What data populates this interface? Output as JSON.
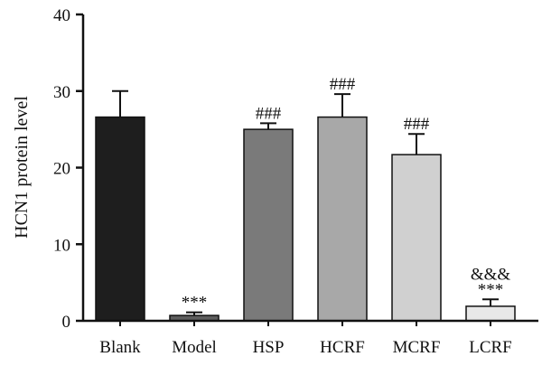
{
  "chart_data": {
    "type": "bar",
    "title": "",
    "xlabel": "",
    "ylabel": "HCN1 protein level",
    "ylim": [
      0,
      40
    ],
    "yticks": [
      0,
      10,
      20,
      30,
      40
    ],
    "ytick_labels": [
      "0",
      "10",
      "20",
      "30",
      "40"
    ],
    "grid": false,
    "categories": [
      "Blank",
      "Model",
      "HSP",
      "HCRF",
      "MCRF",
      "LCRF"
    ],
    "values": [
      26.6,
      0.7,
      25.0,
      26.6,
      21.7,
      1.9
    ],
    "errors": [
      3.4,
      0.4,
      0.8,
      3.0,
      2.7,
      0.9
    ],
    "significance": [
      [],
      [
        "***"
      ],
      [
        "###"
      ],
      [
        "###"
      ],
      [
        "###"
      ],
      [
        "***",
        "&&&"
      ]
    ],
    "colors": [
      "#1e1e1e",
      "#5e5e5e",
      "#7a7a7a",
      "#a8a8a8",
      "#d0d0d0",
      "#e8e8e8"
    ]
  }
}
